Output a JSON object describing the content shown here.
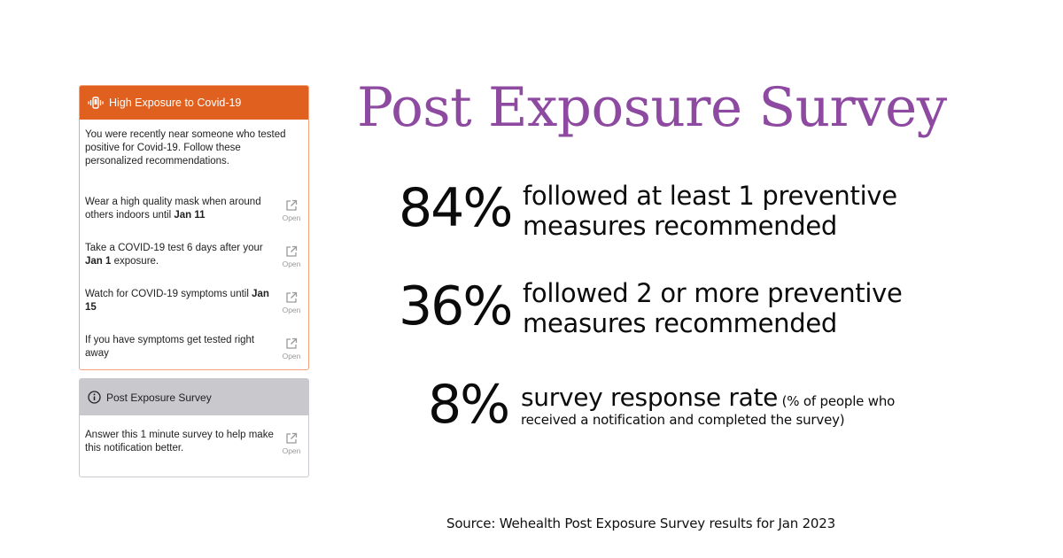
{
  "alert_card": {
    "title": "High Exposure to Covid-19",
    "intro": "You were recently near someone who tested positive for Covid-19. Follow these personalized recommendations.",
    "header_color": "#e0601f",
    "items": [
      {
        "text_before": "Wear a high quality mask when around others indoors until ",
        "bold": "Jan 11",
        "text_after": "",
        "open_label": "Open"
      },
      {
        "text_before": "Take a COVID-19 test 6 days after your ",
        "bold": "Jan 1",
        "text_after": " exposure.",
        "open_label": "Open"
      },
      {
        "text_before": "Watch for COVID-19 symptoms until ",
        "bold": "Jan 15",
        "text_after": "",
        "open_label": "Open"
      },
      {
        "text_before": "If you have symptoms get tested right away",
        "bold": "",
        "text_after": "",
        "open_label": "Open"
      }
    ]
  },
  "survey_card": {
    "title": "Post Exposure Survey",
    "text": "Answer this 1 minute survey to help make this notification better.",
    "open_label": "Open"
  },
  "headline": {
    "title": "Post Exposure Survey",
    "color": "#8e4aa1"
  },
  "stats": [
    {
      "value": "84%",
      "line1": "followed at least 1 preventive",
      "line2": "measures recommended"
    },
    {
      "value": "36%",
      "line1": "followed 2 or more preventive",
      "line2": "measures recommended"
    },
    {
      "value": "8%",
      "line1": "survey response rate",
      "note1": " (% of people who",
      "note2": "received a notification and completed the survey)"
    }
  ],
  "source": "Source: Wehealth Post Exposure Survey results for Jan 2023"
}
